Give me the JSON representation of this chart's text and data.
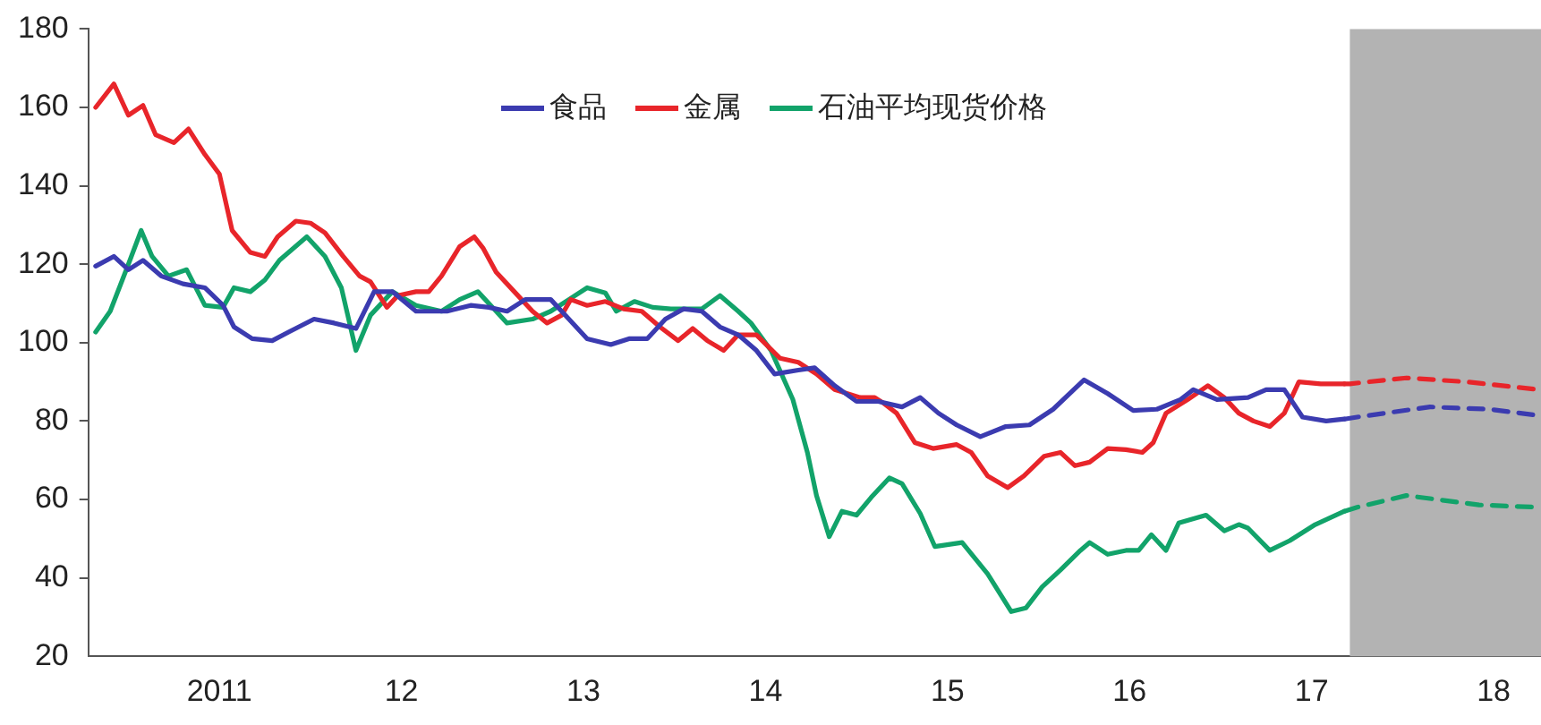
{
  "chart_data": {
    "type": "line",
    "xlim": [
      2010.28,
      2018.26
    ],
    "ylim": [
      20,
      180
    ],
    "xticks": [
      {
        "value": 2011,
        "label": "2011"
      },
      {
        "value": 2012,
        "label": "12"
      },
      {
        "value": 2013,
        "label": "13"
      },
      {
        "value": 2014,
        "label": "14"
      },
      {
        "value": 2015,
        "label": "15"
      },
      {
        "value": 2016,
        "label": "16"
      },
      {
        "value": 2017,
        "label": "17"
      },
      {
        "value": 2018,
        "label": "18"
      }
    ],
    "yticks": [
      20,
      40,
      60,
      80,
      100,
      120,
      140,
      160,
      180
    ],
    "legend": "top",
    "marker": "none",
    "bands": [
      {
        "axis": "x",
        "from": 2017.21,
        "to": 2018.26,
        "color": "#b3b3b3"
      }
    ],
    "series": [
      {
        "name": "食品",
        "color": "#3b3bb0",
        "line_style": "solid",
        "x": [
          2010.32,
          2010.42,
          2010.5,
          2010.58,
          2010.68,
          2010.8,
          2010.92,
          2011.02,
          2011.08,
          2011.18,
          2011.29,
          2011.38,
          2011.52,
          2011.63,
          2011.75,
          2011.85,
          2011.95,
          2012.08,
          2012.25,
          2012.38,
          2012.48,
          2012.58,
          2012.68,
          2012.82,
          2012.88,
          2013.02,
          2013.15,
          2013.25,
          2013.35,
          2013.45,
          2013.55,
          2013.65,
          2013.75,
          2013.85,
          2013.95,
          2014.05,
          2014.18,
          2014.27,
          2014.38,
          2014.5,
          2014.62,
          2014.75,
          2014.85,
          2014.95,
          2015.05,
          2015.18,
          2015.32,
          2015.45,
          2015.58,
          2015.75,
          2015.88,
          2016.02,
          2016.15,
          2016.28,
          2016.35,
          2016.48,
          2016.65,
          2016.75,
          2016.85,
          2016.95,
          2017.08,
          2017.18
        ],
        "values": [
          119.5,
          122,
          118.6,
          121,
          117,
          115,
          114,
          109.5,
          104,
          101,
          100.5,
          102.7,
          106,
          105,
          103.6,
          113,
          113,
          108,
          108,
          109.5,
          109,
          108,
          111,
          111,
          108,
          101,
          99.5,
          101,
          101,
          106,
          108.6,
          108,
          104,
          102,
          98,
          92,
          93,
          93.6,
          89,
          85,
          85,
          83.6,
          86,
          82,
          79,
          76,
          78.6,
          79,
          83,
          90.5,
          87,
          82.7,
          83,
          85.5,
          88,
          85.5,
          86,
          88,
          88,
          81,
          80,
          80.5
        ]
      },
      {
        "name": "金属",
        "color": "#e8252a",
        "line_style": "solid",
        "x": [
          2010.32,
          2010.42,
          2010.5,
          2010.58,
          2010.65,
          2010.75,
          2010.83,
          2010.92,
          2011.0,
          2011.07,
          2011.17,
          2011.25,
          2011.32,
          2011.42,
          2011.5,
          2011.58,
          2011.68,
          2011.77,
          2011.83,
          2011.92,
          2011.98,
          2012.08,
          2012.15,
          2012.22,
          2012.32,
          2012.4,
          2012.45,
          2012.52,
          2012.62,
          2012.72,
          2012.8,
          2012.88,
          2012.93,
          2013.02,
          2013.12,
          2013.22,
          2013.32,
          2013.42,
          2013.52,
          2013.6,
          2013.68,
          2013.77,
          2013.85,
          2013.95,
          2014.08,
          2014.18,
          2014.28,
          2014.38,
          2014.52,
          2014.6,
          2014.65,
          2014.72,
          2014.82,
          2014.92,
          2015.05,
          2015.13,
          2015.22,
          2015.33,
          2015.42,
          2015.53,
          2015.62,
          2015.7,
          2015.78,
          2015.88,
          2015.98,
          2016.07,
          2016.13,
          2016.2,
          2016.32,
          2016.43,
          2016.52,
          2016.6,
          2016.68,
          2016.77,
          2016.85,
          2016.93,
          2017.05,
          2017.18
        ],
        "values": [
          160,
          166,
          158,
          160.5,
          153,
          151,
          154.5,
          148,
          143,
          128.6,
          123,
          122,
          127,
          131,
          130.5,
          128,
          122,
          117,
          115.5,
          109,
          112,
          113,
          113,
          117,
          124.5,
          127,
          124,
          118,
          113,
          108,
          105,
          107,
          111,
          109.5,
          110.5,
          108.6,
          108,
          104,
          100.5,
          103.6,
          100.5,
          98,
          102,
          102,
          96,
          95,
          92,
          88,
          86,
          86,
          84.5,
          82,
          74.5,
          73,
          74,
          72,
          66,
          63,
          66,
          71,
          72,
          68.6,
          69.5,
          73,
          72.7,
          72,
          74.5,
          82,
          85.5,
          89,
          86,
          82,
          80,
          78.6,
          82,
          90,
          89.5,
          89.5
        ]
      },
      {
        "name": "石油平均现货价格",
        "color": "#12a36a",
        "line_style": "solid",
        "x": [
          2010.32,
          2010.4,
          2010.5,
          2010.57,
          2010.63,
          2010.72,
          2010.82,
          2010.92,
          2011.02,
          2011.08,
          2011.17,
          2011.25,
          2011.33,
          2011.48,
          2011.58,
          2011.67,
          2011.75,
          2011.83,
          2011.95,
          2012.08,
          2012.22,
          2012.32,
          2012.42,
          2012.52,
          2012.58,
          2012.72,
          2012.82,
          2012.92,
          2013.02,
          2013.12,
          2013.18,
          2013.28,
          2013.38,
          2013.48,
          2013.65,
          2013.75,
          2013.85,
          2013.92,
          2014.03,
          2014.15,
          2014.23,
          2014.28,
          2014.35,
          2014.42,
          2014.5,
          2014.58,
          2014.68,
          2014.75,
          2014.85,
          2014.93,
          2015.08,
          2015.22,
          2015.35,
          2015.43,
          2015.52,
          2015.62,
          2015.73,
          2015.78,
          2015.88,
          2015.98,
          2016.05,
          2016.12,
          2016.2,
          2016.27,
          2016.42,
          2016.52,
          2016.6,
          2016.65,
          2016.77,
          2016.88,
          2017.02,
          2017.18
        ],
        "values": [
          102.7,
          108,
          120,
          128.6,
          122,
          117,
          118.6,
          109.5,
          109,
          114,
          113,
          116,
          121,
          127,
          122,
          114,
          98,
          107,
          113,
          109.5,
          108,
          111,
          113,
          108,
          105,
          106,
          108,
          111,
          114,
          112.7,
          108,
          110.5,
          109,
          108.6,
          108.6,
          112,
          108,
          105,
          98,
          85.5,
          72,
          61,
          50.5,
          57,
          56,
          60.5,
          65.5,
          64,
          56.4,
          48,
          49,
          41,
          31.4,
          32.3,
          37.7,
          42,
          47,
          49,
          46,
          47,
          47,
          51,
          47,
          54,
          56,
          52,
          53.6,
          52.7,
          47,
          49.5,
          53.6,
          57
        ]
      },
      {
        "color": "#3b3bb0",
        "line_style": "dashed",
        "x": [
          2017.18,
          2017.25,
          2017.65,
          2017.98,
          2018.25
        ],
        "values": [
          80.5,
          81,
          83.6,
          83,
          81.4
        ]
      },
      {
        "color": "#e8252a",
        "line_style": "dashed",
        "x": [
          2017.18,
          2017.21,
          2017.52,
          2017.85,
          2018.25
        ],
        "values": [
          89.5,
          89.5,
          91,
          90,
          88
        ]
      },
      {
        "color": "#12a36a",
        "line_style": "dashed",
        "x": [
          2017.18,
          2017.25,
          2017.52,
          2017.92,
          2018.25
        ],
        "values": [
          57,
          58,
          61,
          58.6,
          58
        ]
      }
    ]
  }
}
